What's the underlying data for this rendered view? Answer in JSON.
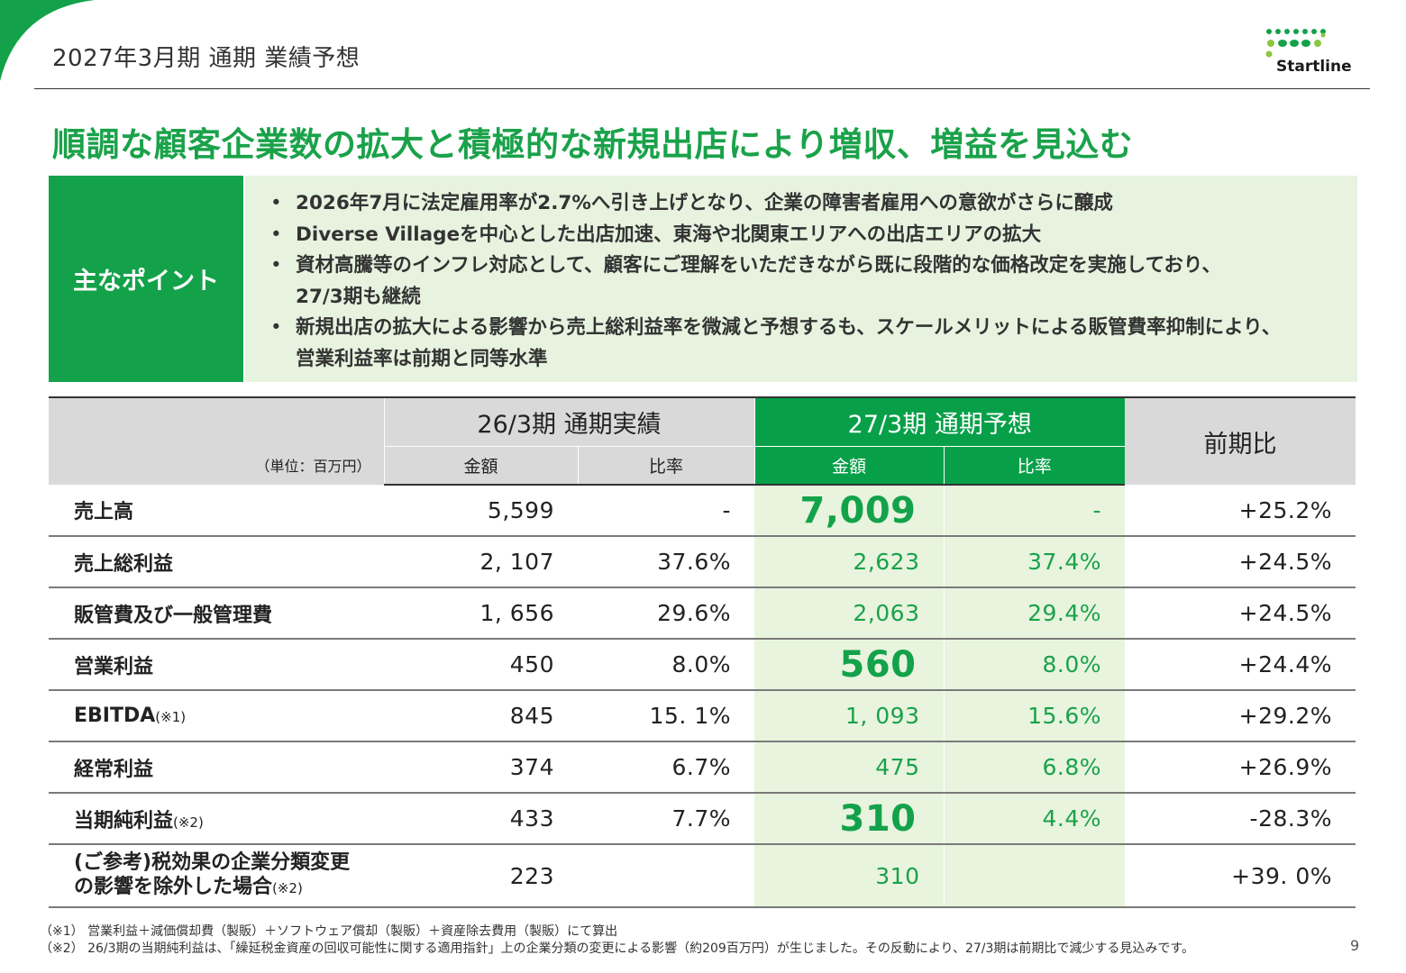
{
  "header": {
    "title": "2027年3月期 通期 業績予想",
    "logo_text": "Startline"
  },
  "colors": {
    "accent_green": "#13a24a",
    "light_green": "#e8f4de",
    "header_grey": "#d9d9d9"
  },
  "headline": "順調な顧客企業数の拡大と積極的な新規出店により増収、増益を見込む",
  "points": {
    "label": "主なポイント",
    "items": [
      "2026年7月に法定雇用率が2.7%へ引き上げとなり、企業の障害者雇用への意欲がさらに醸成",
      "Diverse Villageを中心とした出店加速、東海や北関東エリアへの出店エリアの拡大",
      "資材高騰等のインフレ対応として、顧客にご理解をいただきながら既に段階的な価格改定を実施しており、",
      " 27/3期も継続",
      "新規出店の拡大による影響から売上総利益率を微減と予想するも、スケールメリットによる販管費率抑制により、",
      "営業利益率は前期と同等水準"
    ]
  },
  "table": {
    "unit": "（単位：百万円）",
    "group_prev": "26/3期 通期実績",
    "group_next": "27/3期 通期予想",
    "group_yoy": "前期比",
    "sub_amount": "金額",
    "sub_ratio": "比率",
    "rows": [
      {
        "label": "売上高",
        "note": "",
        "prev_amount": "5,599",
        "prev_ratio": "-",
        "next_amount": "7,009",
        "next_ratio": "-",
        "yoy": "+25.2%"
      },
      {
        "label": "売上総利益",
        "note": "",
        "prev_amount": "2, 107",
        "prev_ratio": "37.6%",
        "next_amount": "2,623",
        "next_ratio": "37.4%",
        "yoy": "+24.5%"
      },
      {
        "label": "販管費及び一般管理費",
        "note": "",
        "prev_amount": "1, 656",
        "prev_ratio": "29.6%",
        "next_amount": "2,063",
        "next_ratio": "29.4%",
        "yoy": "+24.5%"
      },
      {
        "label": "営業利益",
        "note": "",
        "prev_amount": "450",
        "prev_ratio": "8.0%",
        "next_amount": "560",
        "next_ratio": "8.0%",
        "yoy": "+24.4%"
      },
      {
        "label": "EBITDA",
        "note": "(※1)",
        "prev_amount": "845",
        "prev_ratio": "15. 1%",
        "next_amount": "1, 093",
        "next_ratio": "15.6%",
        "yoy": "+29.2%"
      },
      {
        "label": "経常利益",
        "note": "",
        "prev_amount": "374",
        "prev_ratio": "6.7%",
        "next_amount": "475",
        "next_ratio": "6.8%",
        "yoy": "+26.9%"
      },
      {
        "label": "当期純利益",
        "note": "(※2)",
        "prev_amount": "433",
        "prev_ratio": "7.7%",
        "next_amount": "310",
        "next_ratio": "4.4%",
        "yoy": "-28.3%"
      },
      {
        "label_line1": "(ご参考)税効果の企業分類変更",
        "label_line2": "の影響を除外した場合",
        "note": "(※2)",
        "prev_amount": "223",
        "prev_ratio": "",
        "next_amount": "310",
        "next_ratio": "",
        "yoy": "+39. 0%"
      }
    ]
  },
  "footnotes": [
    "（※1） 営業利益＋減価償却費（製販）＋ソフトウェア償却（製販）＋資産除去費用（製販）にて算出",
    "（※2） 26/3期の当期純利益は、「繰延税金資産の回収可能性に関する適用指針」上の企業分類の変更による影響（約209百万円）が生じました。その反動により、27/3期は前期比で減少する見込みです。"
  ],
  "page_number": "9"
}
